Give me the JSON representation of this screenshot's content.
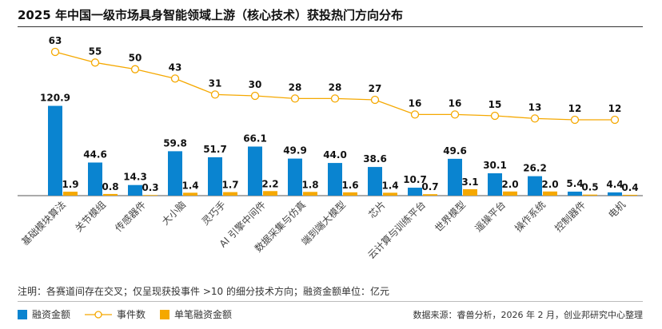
{
  "title": "2025 年中国一级市场具身智能领域上游（核心技术）获投热门方向分布",
  "note": "注明：各赛道间存在交叉；仅呈现获投事件 >10 的细分技术方向；融资金额单位：亿元",
  "source": "数据来源：睿兽分析，2026 年 2 月，创业邦研究中心整理",
  "colors": {
    "amount": "#0a84d0",
    "count": "#f5a800",
    "per": "#f5a800"
  },
  "chart_data": {
    "type": "bar+line",
    "categories": [
      "基础模块算法",
      "关节模组",
      "传感器件",
      "大小脑",
      "灵巧手",
      "AI 引擎中间件",
      "数据采集与仿真",
      "端到端大模型",
      "芯片",
      "云计算与训练平台",
      "世界模型",
      "遥操平台",
      "操作系统",
      "控制器件",
      "电机"
    ],
    "series": [
      {
        "name": "融资金额",
        "type": "bar",
        "values": [
          120.9,
          44.6,
          14.3,
          59.8,
          51.7,
          66.1,
          49.9,
          44.0,
          38.6,
          10.7,
          49.6,
          30.1,
          26.2,
          5.4,
          4.4
        ]
      },
      {
        "name": "单笔融资金额",
        "type": "bar",
        "values": [
          1.9,
          0.8,
          0.3,
          1.4,
          1.7,
          2.2,
          1.8,
          1.6,
          1.4,
          0.7,
          3.1,
          2.0,
          2.0,
          0.5,
          0.4
        ]
      },
      {
        "name": "事件数",
        "type": "line",
        "values": [
          63,
          55,
          50,
          43,
          31,
          30,
          28,
          28,
          27,
          16,
          16,
          15,
          13,
          12,
          12
        ]
      }
    ],
    "legend_placement": "bottom-left"
  }
}
